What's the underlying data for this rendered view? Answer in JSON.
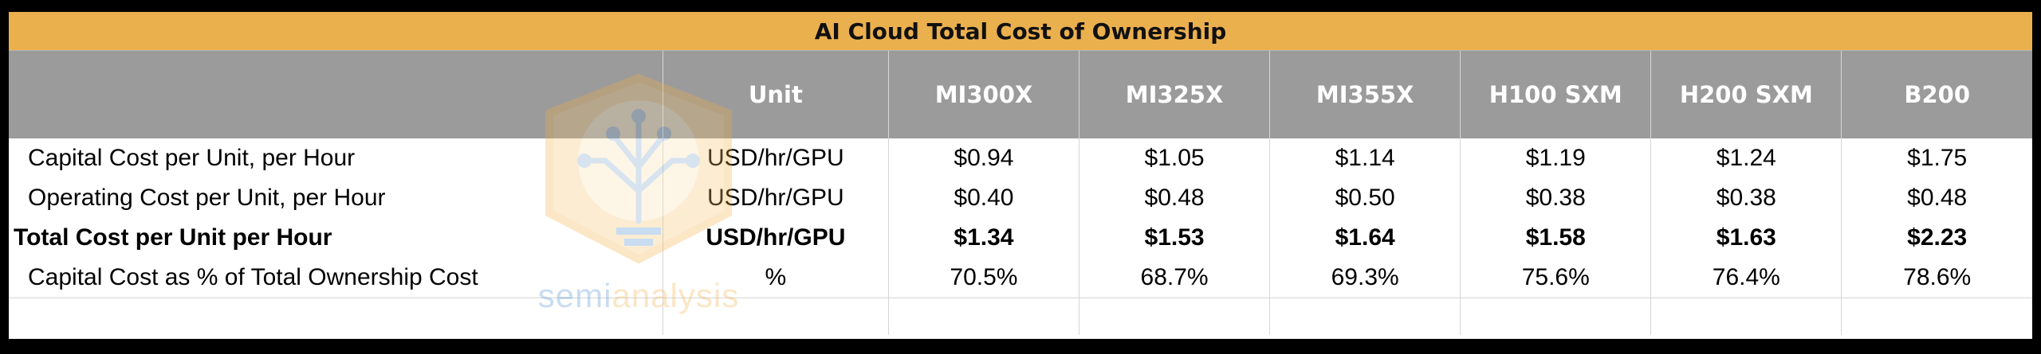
{
  "table": {
    "title": "AI Cloud Total Cost of Ownership",
    "header": {
      "blank": "",
      "unit": "Unit",
      "columns": [
        "MI300X",
        "MI325X",
        "MI355X",
        "H100 SXM",
        "H200 SXM",
        "B200"
      ]
    },
    "rows": [
      {
        "label": "Capital Cost per Unit, per Hour",
        "unit": "USD/hr/GPU",
        "values": [
          "$0.94",
          "$1.05",
          "$1.14",
          "$1.19",
          "$1.24",
          "$1.75"
        ],
        "bold": false
      },
      {
        "label": "Operating Cost per Unit, per Hour",
        "unit": "USD/hr/GPU",
        "values": [
          "$0.40",
          "$0.48",
          "$0.50",
          "$0.38",
          "$0.38",
          "$0.48"
        ],
        "bold": false
      },
      {
        "label": "Total Cost per Unit per Hour",
        "unit": "USD/hr/GPU",
        "values": [
          "$1.34",
          "$1.53",
          "$1.64",
          "$1.58",
          "$1.63",
          "$2.23"
        ],
        "bold": true
      },
      {
        "label": "Capital Cost as % of Total Ownership Cost",
        "unit": "%",
        "values": [
          "70.5%",
          "68.7%",
          "69.3%",
          "75.6%",
          "76.4%",
          "78.6%"
        ],
        "bold": false
      }
    ]
  },
  "watermark": {
    "text_part1": "semi",
    "text_part2": "analysis",
    "icon": "tree-circuit-logo-icon"
  },
  "colors": {
    "title_bg": "#ebb04e",
    "header_bg": "#9b9b9b",
    "header_text": "#ffffff",
    "frame": "#000000"
  }
}
